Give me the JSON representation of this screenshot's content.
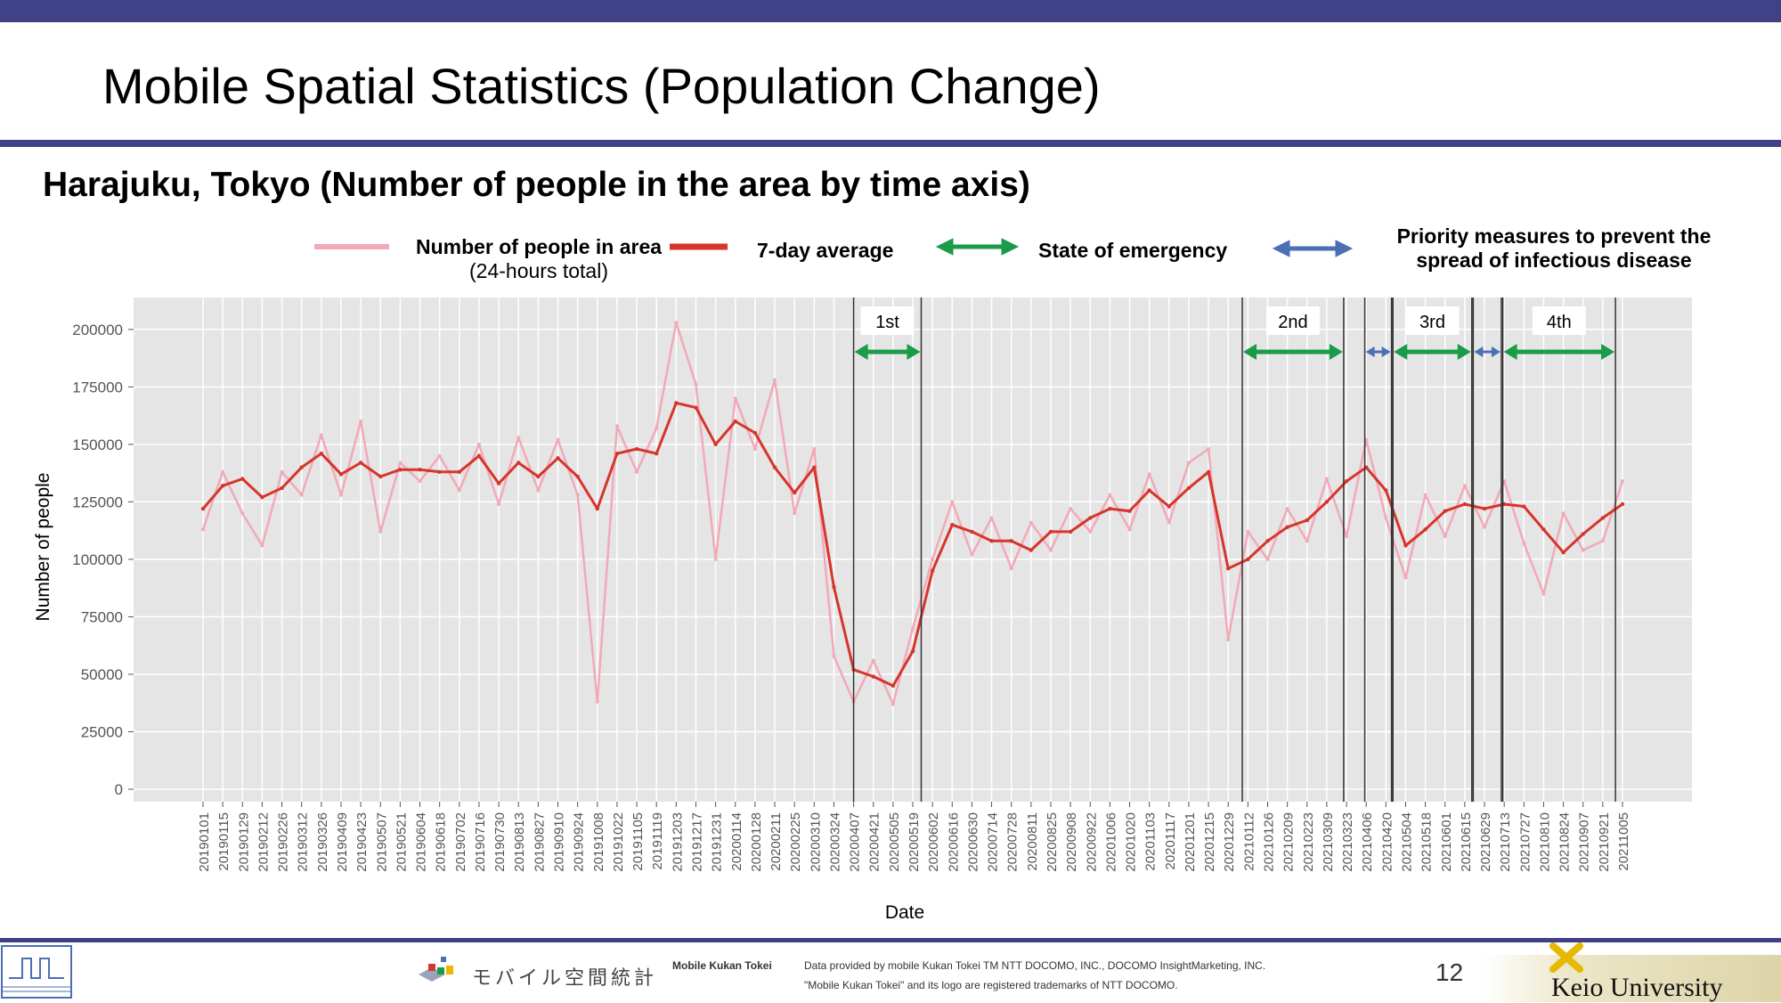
{
  "slide": {
    "title": "Mobile Spatial Statistics (Population Change)",
    "subtitle": "Harajuku, Tokyo (Number of people in the area by time axis)",
    "page_number": "12",
    "colors": {
      "bar": "#404287",
      "accent_line": "#d6352b",
      "raw_line": "#f2a9b8",
      "emergency": "#1a9b48",
      "priority": "#4a6fb5",
      "plot_bg": "#e5e5e5"
    }
  },
  "legend": {
    "raw_label_1": "Number of people in area",
    "raw_label_2": "(24-hours total)",
    "avg_label": "7-day average",
    "emergency_label": "State of emergency",
    "priority_label_1": "Priority measures to prevent the",
    "priority_label_2": "spread of infectious disease"
  },
  "chart_data": {
    "type": "line",
    "xlabel": "Date",
    "ylabel": "Number of people",
    "ylim": [
      0,
      210000
    ],
    "yticks": [
      0,
      25000,
      50000,
      75000,
      100000,
      125000,
      150000,
      175000,
      200000
    ],
    "ytick_labels": [
      "0",
      "25000",
      "50000",
      "75000",
      "100000",
      "125000",
      "150000",
      "175000",
      "200000"
    ],
    "grid": true,
    "x_tick_labels": [
      "20190101",
      "20190115",
      "20190129",
      "20190212",
      "20190226",
      "20190312",
      "20190326",
      "20190409",
      "20190423",
      "20190507",
      "20190521",
      "20190604",
      "20190618",
      "20190702",
      "20190716",
      "20190730",
      "20190813",
      "20190827",
      "20190910",
      "20190924",
      "20191008",
      "20191022",
      "20191105",
      "20191119",
      "20191203",
      "20191217",
      "20191231",
      "20200114",
      "20200128",
      "20200211",
      "20200225",
      "20200310",
      "20200324",
      "20200407",
      "20200421",
      "20200505",
      "20200519",
      "20200602",
      "20200616",
      "20200630",
      "20200714",
      "20200728",
      "20200811",
      "20200825",
      "20200908",
      "20200922",
      "20201006",
      "20201020",
      "20201103",
      "20201117",
      "20201201",
      "20201215",
      "20201229",
      "20210112",
      "20210126",
      "20210209",
      "20210223",
      "20210309",
      "20210323",
      "20210406",
      "20210420",
      "20210504",
      "20210518",
      "20210601",
      "20210615",
      "20210629",
      "20210713",
      "20210727",
      "20210810",
      "20210824",
      "20210907",
      "20210921",
      "20211005"
    ],
    "series": [
      {
        "name": "7-day average",
        "x": [
          "20190101",
          "20190115",
          "20190129",
          "20190212",
          "20190226",
          "20190312",
          "20190326",
          "20190409",
          "20190423",
          "20190507",
          "20190521",
          "20190604",
          "20190618",
          "20190702",
          "20190716",
          "20190730",
          "20190813",
          "20190827",
          "20190910",
          "20190924",
          "20191008",
          "20191022",
          "20191105",
          "20191119",
          "20191203",
          "20191217",
          "20191231",
          "20200114",
          "20200128",
          "20200211",
          "20200225",
          "20200310",
          "20200324",
          "20200407",
          "20200421",
          "20200505",
          "20200519",
          "20200602",
          "20200616",
          "20200630",
          "20200714",
          "20200728",
          "20200811",
          "20200825",
          "20200908",
          "20200922",
          "20201006",
          "20201020",
          "20201103",
          "20201117",
          "20201201",
          "20201215",
          "20201229",
          "20210112",
          "20210126",
          "20210209",
          "20210223",
          "20210309",
          "20210323",
          "20210406",
          "20210420",
          "20210504",
          "20210518",
          "20210601",
          "20210615",
          "20210629",
          "20210713",
          "20210727",
          "20210810",
          "20210824",
          "20210907",
          "20210921",
          "20211005"
        ],
        "values": [
          122000,
          132000,
          135000,
          127000,
          131000,
          140000,
          146000,
          137000,
          142000,
          136000,
          139000,
          139000,
          138000,
          138000,
          145000,
          133000,
          142000,
          136000,
          144000,
          136000,
          122000,
          146000,
          148000,
          146000,
          168000,
          166000,
          150000,
          160000,
          155000,
          140000,
          129000,
          140000,
          88000,
          52000,
          49000,
          45000,
          60000,
          95000,
          115000,
          112000,
          108000,
          108000,
          104000,
          112000,
          112000,
          118000,
          122000,
          121000,
          130000,
          123000,
          131000,
          138000,
          96000,
          100000,
          108000,
          114000,
          117000,
          125000,
          134000,
          140000,
          130000,
          106000,
          113000,
          121000,
          124000,
          122000,
          124000,
          123000,
          113000,
          103000,
          111000,
          118000,
          124000
        ]
      },
      {
        "name": "Number of people in area (24-hours total)",
        "x": [
          "20190101",
          "20190115",
          "20190129",
          "20190212",
          "20190226",
          "20190312",
          "20190326",
          "20190409",
          "20190423",
          "20190507",
          "20190521",
          "20190604",
          "20190618",
          "20190702",
          "20190716",
          "20190730",
          "20190813",
          "20190827",
          "20190910",
          "20190924",
          "20191008",
          "20191022",
          "20191105",
          "20191119",
          "20191203",
          "20191217",
          "20191231",
          "20200114",
          "20200128",
          "20200211",
          "20200225",
          "20200310",
          "20200324",
          "20200407",
          "20200421",
          "20200505",
          "20200519",
          "20200602",
          "20200616",
          "20200630",
          "20200714",
          "20200728",
          "20200811",
          "20200825",
          "20200908",
          "20200922",
          "20201006",
          "20201020",
          "20201103",
          "20201117",
          "20201201",
          "20201215",
          "20201229",
          "20210112",
          "20210126",
          "20210209",
          "20210223",
          "20210309",
          "20210323",
          "20210406",
          "20210420",
          "20210504",
          "20210518",
          "20210601",
          "20210615",
          "20210629",
          "20210713",
          "20210727",
          "20210810",
          "20210824",
          "20210907",
          "20210921",
          "20211005"
        ],
        "values": [
          113000,
          138000,
          120000,
          106000,
          138000,
          128000,
          154000,
          128000,
          160000,
          112000,
          142000,
          134000,
          145000,
          130000,
          150000,
          124000,
          153000,
          130000,
          152000,
          128000,
          38000,
          158000,
          138000,
          157000,
          203000,
          176000,
          100000,
          170000,
          148000,
          178000,
          120000,
          148000,
          58000,
          38000,
          56000,
          37000,
          70000,
          100000,
          125000,
          102000,
          118000,
          96000,
          116000,
          104000,
          122000,
          112000,
          128000,
          113000,
          137000,
          116000,
          142000,
          148000,
          65000,
          112000,
          100000,
          122000,
          108000,
          135000,
          110000,
          152000,
          118000,
          92000,
          128000,
          110000,
          132000,
          114000,
          134000,
          107000,
          85000,
          120000,
          104000,
          108000,
          134000
        ]
      }
    ],
    "periods": [
      {
        "type": "State of emergency",
        "label": "1st",
        "start": "20200407",
        "end": "20200525"
      },
      {
        "type": "State of emergency",
        "label": "2nd",
        "start": "20210108",
        "end": "20210321"
      },
      {
        "type": "Priority measures to prevent the spread of infectious disease",
        "label": "",
        "start": "20210405",
        "end": "20210424"
      },
      {
        "type": "State of emergency",
        "label": "3rd",
        "start": "20210425",
        "end": "20210620"
      },
      {
        "type": "Priority measures to prevent the spread of infectious disease",
        "label": "",
        "start": "20210621",
        "end": "20210711"
      },
      {
        "type": "State of emergency",
        "label": "4th",
        "start": "20210712",
        "end": "20210930"
      }
    ]
  },
  "footer": {
    "brand_jp": "モバイル空間統計",
    "brand_en": "Mobile Kukan Tokei",
    "credit_1": "Data provided by mobile Kukan Tokei TM NTT DOCOMO, INC., DOCOMO InsightMarketing, INC.",
    "credit_2": "\"Mobile Kukan Tokei\" and its logo are registered trademarks of NTT DOCOMO.",
    "university": "Keio University"
  }
}
